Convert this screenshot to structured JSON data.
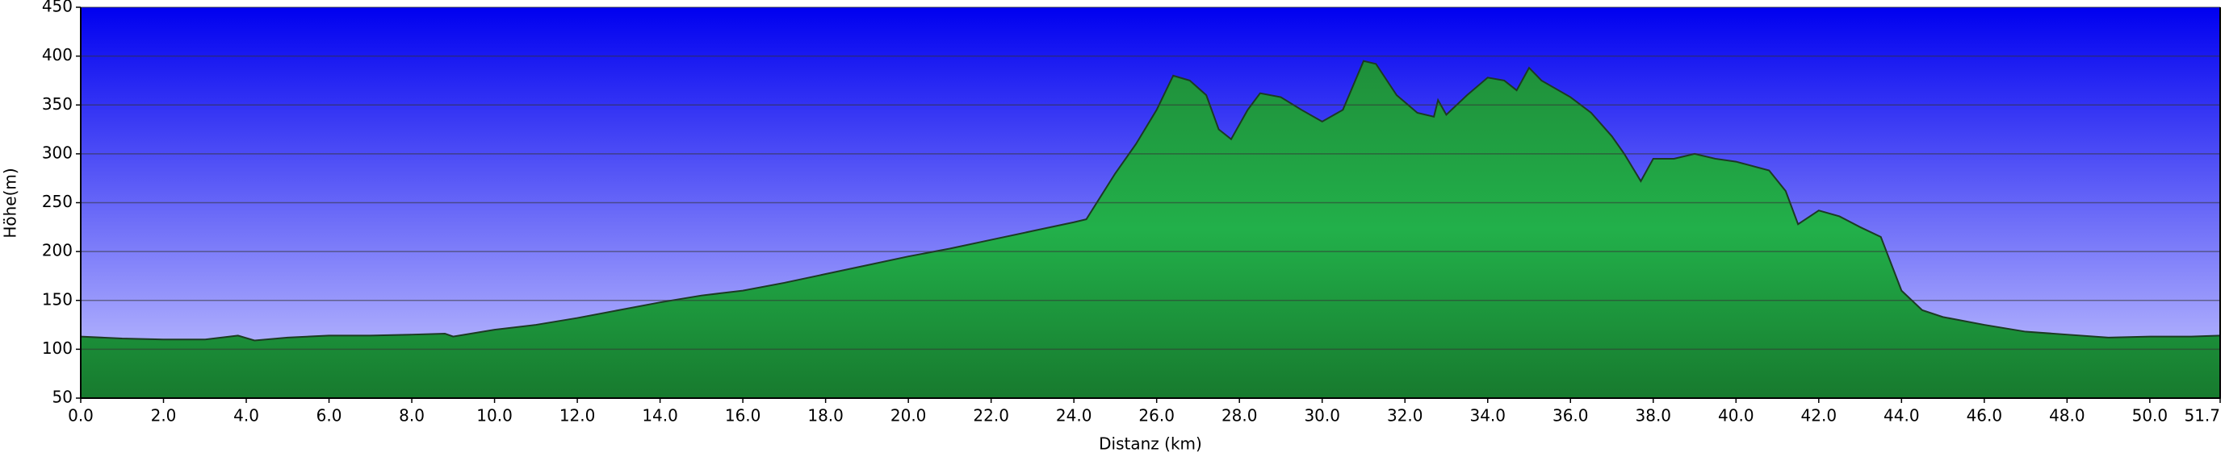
{
  "chart_data": {
    "type": "area",
    "x_label": "Distanz   (km)",
    "y_label": "Höhe(m)",
    "x": [
      0,
      1,
      2,
      3,
      3.8,
      4.2,
      5,
      6,
      7,
      8,
      8.8,
      9,
      10,
      11,
      12,
      13,
      14,
      15,
      16,
      17,
      18,
      19,
      20,
      21,
      22,
      23,
      24,
      24.3,
      25,
      25.5,
      26,
      26.4,
      26.8,
      27.2,
      27.5,
      27.8,
      28.2,
      28.5,
      29,
      29.5,
      30,
      30.5,
      31,
      31.3,
      31.8,
      32.3,
      32.7,
      32.8,
      33,
      33.5,
      34,
      34.4,
      34.7,
      35,
      35.3,
      36,
      36.5,
      37,
      37.3,
      37.7,
      38,
      38.5,
      39,
      39.5,
      40,
      40.8,
      41.2,
      41.5,
      42,
      42.5,
      43,
      43.5,
      44,
      44.5,
      45,
      46,
      47,
      48,
      49,
      50,
      51,
      51.7
    ],
    "values": [
      113,
      111,
      110,
      110,
      114,
      109,
      112,
      114,
      114,
      115,
      116,
      113,
      120,
      125,
      132,
      140,
      148,
      155,
      160,
      168,
      177,
      186,
      195,
      203,
      212,
      221,
      230,
      233,
      280,
      310,
      345,
      380,
      375,
      360,
      325,
      315,
      345,
      362,
      358,
      345,
      333,
      345,
      395,
      392,
      360,
      342,
      338,
      355,
      340,
      360,
      378,
      375,
      365,
      388,
      375,
      358,
      342,
      318,
      300,
      272,
      295,
      295,
      300,
      295,
      292,
      283,
      262,
      228,
      242,
      236,
      225,
      215,
      160,
      140,
      133,
      125,
      118,
      115,
      112,
      113,
      113,
      114
    ],
    "xlim": [
      0,
      51.7
    ],
    "xticks": [
      {
        "value": 0,
        "label": "0.0"
      },
      {
        "value": 2,
        "label": "2.0"
      },
      {
        "value": 4,
        "label": "4.0"
      },
      {
        "value": 6,
        "label": "6.0"
      },
      {
        "value": 8,
        "label": "8.0"
      },
      {
        "value": 10,
        "label": "10.0"
      },
      {
        "value": 12,
        "label": "12.0"
      },
      {
        "value": 14,
        "label": "14.0"
      },
      {
        "value": 16,
        "label": "16.0"
      },
      {
        "value": 18,
        "label": "18.0"
      },
      {
        "value": 20,
        "label": "20.0"
      },
      {
        "value": 22,
        "label": "22.0"
      },
      {
        "value": 24,
        "label": "24.0"
      },
      {
        "value": 26,
        "label": "26.0"
      },
      {
        "value": 28,
        "label": "28.0"
      },
      {
        "value": 30,
        "label": "30.0"
      },
      {
        "value": 32,
        "label": "32.0"
      },
      {
        "value": 34,
        "label": "34.0"
      },
      {
        "value": 36,
        "label": "36.0"
      },
      {
        "value": 38,
        "label": "38.0"
      },
      {
        "value": 40,
        "label": "40.0"
      },
      {
        "value": 42,
        "label": "42.0"
      },
      {
        "value": 44,
        "label": "44.0"
      },
      {
        "value": 46,
        "label": "46.0"
      },
      {
        "value": 48,
        "label": "48.0"
      },
      {
        "value": 50,
        "label": "50.0"
      },
      51.7
    ],
    "ylim": [
      50,
      450
    ],
    "yticks": [
      50,
      100,
      150,
      200,
      250,
      300,
      350,
      400,
      450
    ],
    "grid": true,
    "color": "#22a844"
  }
}
